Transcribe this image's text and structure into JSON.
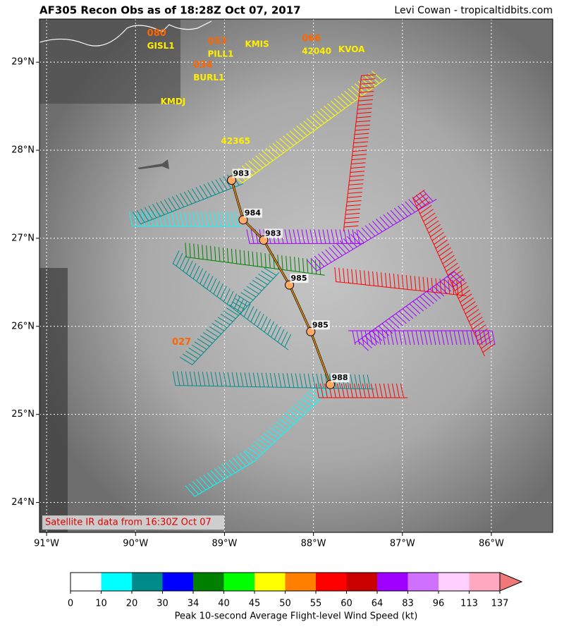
{
  "map": {
    "title": "AF305 Recon Obs as of 18:28Z Oct 07, 2017",
    "credit": "Levi Cowan - tropicaltidbits.com",
    "xlim": [
      -91.08,
      -85.31
    ],
    "ylim": [
      23.66,
      29.49
    ],
    "xticks": [
      {
        "value": -91,
        "label": "91°W"
      },
      {
        "value": -90,
        "label": "90°W"
      },
      {
        "value": -89,
        "label": "89°W"
      },
      {
        "value": -88,
        "label": "88°W"
      },
      {
        "value": -87,
        "label": "87°W"
      },
      {
        "value": -86,
        "label": "86°W"
      }
    ],
    "yticks": [
      {
        "value": 24,
        "label": "24°N"
      },
      {
        "value": 25,
        "label": "25°N"
      },
      {
        "value": 26,
        "label": "26°N"
      },
      {
        "value": 27,
        "label": "27°N"
      },
      {
        "value": 28,
        "label": "28°N"
      },
      {
        "value": 29,
        "label": "29°N"
      }
    ],
    "grid": true,
    "caption": "Satellite IR data from 16:30Z Oct 07",
    "stations": [
      {
        "name": "GISL1",
        "value": "080",
        "lon": -89.87,
        "lat": 29.18
      },
      {
        "name": "PILL1",
        "value": "053",
        "lon": -89.19,
        "lat": 29.09
      },
      {
        "name": "KMIS",
        "lon": -88.77,
        "lat": 29.2
      },
      {
        "name": "42040",
        "value": "066",
        "lon": -88.13,
        "lat": 29.12
      },
      {
        "name": "KVOA",
        "lon": -87.72,
        "lat": 29.14
      },
      {
        "name": "BURL1",
        "value": "034",
        "lon": -89.35,
        "lat": 28.82
      },
      {
        "name": "KMDJ",
        "lon": -89.72,
        "lat": 28.55
      },
      {
        "name": "42365",
        "lon": -89.04,
        "lat": 28.1
      },
      {
        "value": "027",
        "lon": -89.59,
        "lat": 25.82
      }
    ],
    "fixes": [
      {
        "pressure": "983",
        "lon": -88.92,
        "lat": 27.66
      },
      {
        "pressure": "984",
        "lon": -88.79,
        "lat": 27.21
      },
      {
        "pressure": "983",
        "lon": -88.56,
        "lat": 26.98
      },
      {
        "pressure": "985",
        "lon": -88.27,
        "lat": 26.47
      },
      {
        "pressure": "985",
        "lon": -88.03,
        "lat": 25.94
      },
      {
        "pressure": "988",
        "lon": -87.81,
        "lat": 25.34
      }
    ],
    "flight_legs": [
      {
        "start": [
          -89.44,
          24.19
        ],
        "end": [
          -88.77,
          24.59
        ],
        "wind": 15
      },
      {
        "start": [
          -88.77,
          24.59
        ],
        "end": [
          -87.97,
          25.35
        ],
        "wind": 18
      },
      {
        "start": [
          -87.97,
          25.35
        ],
        "end": [
          -86.98,
          25.35
        ],
        "wind": 57
      },
      {
        "start": [
          -89.58,
          25.49
        ],
        "end": [
          -87.37,
          25.45
        ],
        "wind": 25
      },
      {
        "start": [
          -89.5,
          25.65
        ],
        "end": [
          -88.55,
          26.67
        ],
        "wind": 27
      },
      {
        "start": [
          -89.51,
          26.86
        ],
        "end": [
          -88.24,
          25.9
        ],
        "wind": 28
      },
      {
        "start": [
          -89.44,
          26.95
        ],
        "end": [
          -87.93,
          26.75
        ],
        "wind": 38
      },
      {
        "start": [
          -88.07,
          26.75
        ],
        "end": [
          -86.75,
          27.55
        ],
        "wind": 75
      },
      {
        "start": [
          -86.75,
          27.55
        ],
        "end": [
          -85.96,
          25.79
        ],
        "wind": 58
      },
      {
        "start": [
          -85.96,
          25.79
        ],
        "end": [
          -87.55,
          25.79
        ],
        "wind": 72
      },
      {
        "start": [
          -87.76,
          26.67
        ],
        "end": [
          -86.3,
          26.51
        ],
        "wind": 59
      },
      {
        "start": [
          -86.3,
          26.51
        ],
        "end": [
          -87.4,
          25.71
        ],
        "wind": 70
      },
      {
        "start": [
          -90.07,
          27.3
        ],
        "end": [
          -88.86,
          27.3
        ],
        "wind": 12
      },
      {
        "start": [
          -90.03,
          27.3
        ],
        "end": [
          -88.92,
          27.74
        ],
        "wind": 24
      },
      {
        "start": [
          -88.92,
          27.74
        ],
        "end": [
          -87.34,
          28.9
        ],
        "wind": 48
      },
      {
        "start": [
          -87.3,
          28.86
        ],
        "end": [
          -87.5,
          27.1
        ],
        "wind": 58
      },
      {
        "start": [
          -88.75,
          27.1
        ],
        "end": [
          -87.5,
          27.1
        ],
        "wind": 76
      }
    ],
    "colorbar": {
      "label": "Peak 10-second Average Flight-level Wind Speed (kt)",
      "ticks": [
        0,
        10,
        20,
        30,
        34,
        40,
        45,
        50,
        55,
        60,
        64,
        83,
        96,
        113,
        137
      ],
      "colors": [
        "#ffffff",
        "#00ffff",
        "#008b8b",
        "#0000ff",
        "#008000",
        "#00ff00",
        "#ffff00",
        "#ff8000",
        "#ff0000",
        "#c80000",
        "#a000ff",
        "#d070ff",
        "#ffd0ff",
        "#ffa8c0",
        "#f07878"
      ]
    }
  }
}
